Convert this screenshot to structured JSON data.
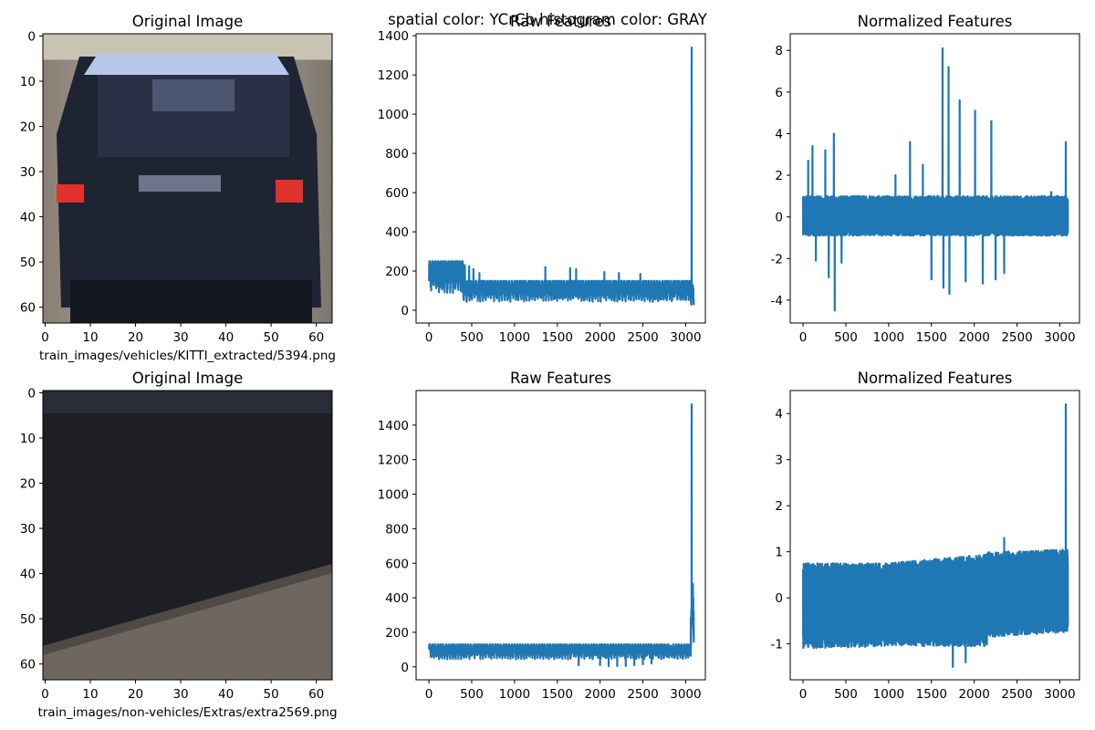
{
  "figure": {
    "suptitle_overlap": "spatial color: YCrCb histogram color: GRAY",
    "colors": {
      "series": "#1f77b4",
      "axes": "#000000",
      "background": "#ffffff"
    }
  },
  "chart_data": [
    {
      "id": "r0c0",
      "type": "image",
      "title": "Original Image",
      "xlabel": "train_images/vehicles/KITTI_extracted/5394.png",
      "xticks": [
        0,
        10,
        20,
        30,
        40,
        50,
        60
      ],
      "yticks": [
        0,
        10,
        20,
        30,
        40,
        50,
        60
      ],
      "xlim": [
        -0.5,
        63.5
      ],
      "ylim": [
        63.5,
        -0.5
      ],
      "image_description": "blurry rear view of a dark blue car with red tail lights and a license plate"
    },
    {
      "id": "r0c1",
      "type": "line",
      "title": "Raw Features",
      "xlabel": "",
      "xticks": [
        0,
        500,
        1000,
        1500,
        2000,
        2500,
        3000
      ],
      "yticks": [
        0,
        200,
        400,
        600,
        800,
        1000,
        1200,
        1400
      ],
      "xlim": [
        -150,
        3230
      ],
      "ylim": [
        -65,
        1410
      ],
      "series": [
        {
          "n_points": 3096,
          "segments": [
            {
              "x": [
                0,
                400
              ],
              "low": 50,
              "high": 250
            },
            {
              "x": [
                400,
                3060
              ],
              "low": 20,
              "high": 150
            },
            {
              "x": [
                3060,
                3096
              ],
              "low": 0,
              "high": 130
            }
          ],
          "spikes": [
            {
              "x": 160,
              "y": 200
            },
            {
              "x": 220,
              "y": 230
            },
            {
              "x": 280,
              "y": 245
            },
            {
              "x": 320,
              "y": 250
            },
            {
              "x": 380,
              "y": 245
            },
            {
              "x": 420,
              "y": 230
            },
            {
              "x": 470,
              "y": 225
            },
            {
              "x": 520,
              "y": 210
            },
            {
              "x": 590,
              "y": 190
            },
            {
              "x": 1360,
              "y": 220
            },
            {
              "x": 1650,
              "y": 215
            },
            {
              "x": 1720,
              "y": 210
            },
            {
              "x": 2050,
              "y": 195
            },
            {
              "x": 2220,
              "y": 190
            },
            {
              "x": 2470,
              "y": 185
            },
            {
              "x": 3070,
              "y": 1340
            }
          ]
        }
      ]
    },
    {
      "id": "r0c2",
      "type": "line",
      "title": "Normalized Features",
      "xlabel": "",
      "xticks": [
        0,
        500,
        1000,
        1500,
        2000,
        2500,
        3000
      ],
      "yticks": [
        -4,
        -2,
        0,
        2,
        4,
        6,
        8
      ],
      "xlim": [
        -150,
        3230
      ],
      "ylim": [
        -5.1,
        8.8
      ],
      "series": [
        {
          "n_points": 3096,
          "band": {
            "low": -0.9,
            "high": 1.0
          },
          "spikes": [
            {
              "x": 60,
              "y": 2.7
            },
            {
              "x": 110,
              "y": 3.4
            },
            {
              "x": 150,
              "y": -2.1
            },
            {
              "x": 260,
              "y": 3.2
            },
            {
              "x": 300,
              "y": -2.9
            },
            {
              "x": 360,
              "y": 4.0
            },
            {
              "x": 370,
              "y": -4.5
            },
            {
              "x": 450,
              "y": -2.2
            },
            {
              "x": 1080,
              "y": 2.0
            },
            {
              "x": 1250,
              "y": 3.6
            },
            {
              "x": 1400,
              "y": 2.5
            },
            {
              "x": 1500,
              "y": -3.0
            },
            {
              "x": 1630,
              "y": 8.1
            },
            {
              "x": 1640,
              "y": -3.4
            },
            {
              "x": 1700,
              "y": 7.2
            },
            {
              "x": 1710,
              "y": -3.7
            },
            {
              "x": 1830,
              "y": 5.6
            },
            {
              "x": 1900,
              "y": -3.1
            },
            {
              "x": 2010,
              "y": 5.1
            },
            {
              "x": 2100,
              "y": -3.2
            },
            {
              "x": 2200,
              "y": 4.6
            },
            {
              "x": 2250,
              "y": -3.0
            },
            {
              "x": 2350,
              "y": -2.7
            },
            {
              "x": 2900,
              "y": 1.2
            },
            {
              "x": 3070,
              "y": 3.6
            }
          ]
        }
      ]
    },
    {
      "id": "r1c0",
      "type": "image",
      "title": "Original Image",
      "xlabel": "train_images/non-vehicles/Extras/extra2569.png",
      "xticks": [
        0,
        10,
        20,
        30,
        40,
        50,
        60
      ],
      "yticks": [
        0,
        10,
        20,
        30,
        40,
        50,
        60
      ],
      "xlim": [
        -0.5,
        63.5
      ],
      "ylim": [
        63.5,
        -0.5
      ],
      "image_description": "dark gray road surface with a lighter diagonal band in the lower-left corner"
    },
    {
      "id": "r1c1",
      "type": "line",
      "title": "Raw Features",
      "xlabel": "",
      "xticks": [
        0,
        500,
        1000,
        1500,
        2000,
        2500,
        3000
      ],
      "yticks": [
        0,
        200,
        400,
        600,
        800,
        1000,
        1200,
        1400
      ],
      "xlim": [
        -150,
        3230
      ],
      "ylim": [
        -75,
        1600
      ],
      "series": [
        {
          "n_points": 3096,
          "segments": [
            {
              "x": [
                0,
                3060
              ],
              "low": 25,
              "high": 130
            },
            {
              "x": [
                3060,
                3096
              ],
              "low": 0,
              "high": 480
            }
          ],
          "dips": [
            {
              "x": 1750,
              "y": 10
            },
            {
              "x": 2000,
              "y": 10
            },
            {
              "x": 2100,
              "y": 5
            },
            {
              "x": 2200,
              "y": 5
            },
            {
              "x": 2300,
              "y": 5
            },
            {
              "x": 2400,
              "y": 10
            },
            {
              "x": 2500,
              "y": 15
            },
            {
              "x": 2600,
              "y": 20
            }
          ],
          "spikes": [
            {
              "x": 3070,
              "y": 1520
            },
            {
              "x": 3080,
              "y": 480
            }
          ]
        }
      ]
    },
    {
      "id": "r1c2",
      "type": "line",
      "title": "Normalized Features",
      "xlabel": "",
      "xticks": [
        0,
        500,
        1000,
        1500,
        2000,
        2500,
        3000
      ],
      "yticks": [
        -1,
        0,
        1,
        2,
        3,
        4
      ],
      "xlim": [
        -150,
        3230
      ],
      "ylim": [
        -1.78,
        4.5
      ],
      "series": [
        {
          "n_points": 3096,
          "band_profile": [
            {
              "x": 0,
              "low": -1.1,
              "high": 0.75
            },
            {
              "x": 1000,
              "low": -1.05,
              "high": 0.75
            },
            {
              "x": 2150,
              "low": -1.05,
              "high": 0.95
            },
            {
              "x": 2160,
              "low": -0.85,
              "high": 1.0
            },
            {
              "x": 3060,
              "low": -0.75,
              "high": 1.05
            }
          ],
          "spikes": [
            {
              "x": 2350,
              "y": 1.3
            },
            {
              "x": 1750,
              "y": -1.5
            },
            {
              "x": 1900,
              "y": -1.4
            },
            {
              "x": 3070,
              "y": 4.2
            },
            {
              "x": 3096,
              "y": -0.4
            }
          ]
        }
      ]
    }
  ]
}
